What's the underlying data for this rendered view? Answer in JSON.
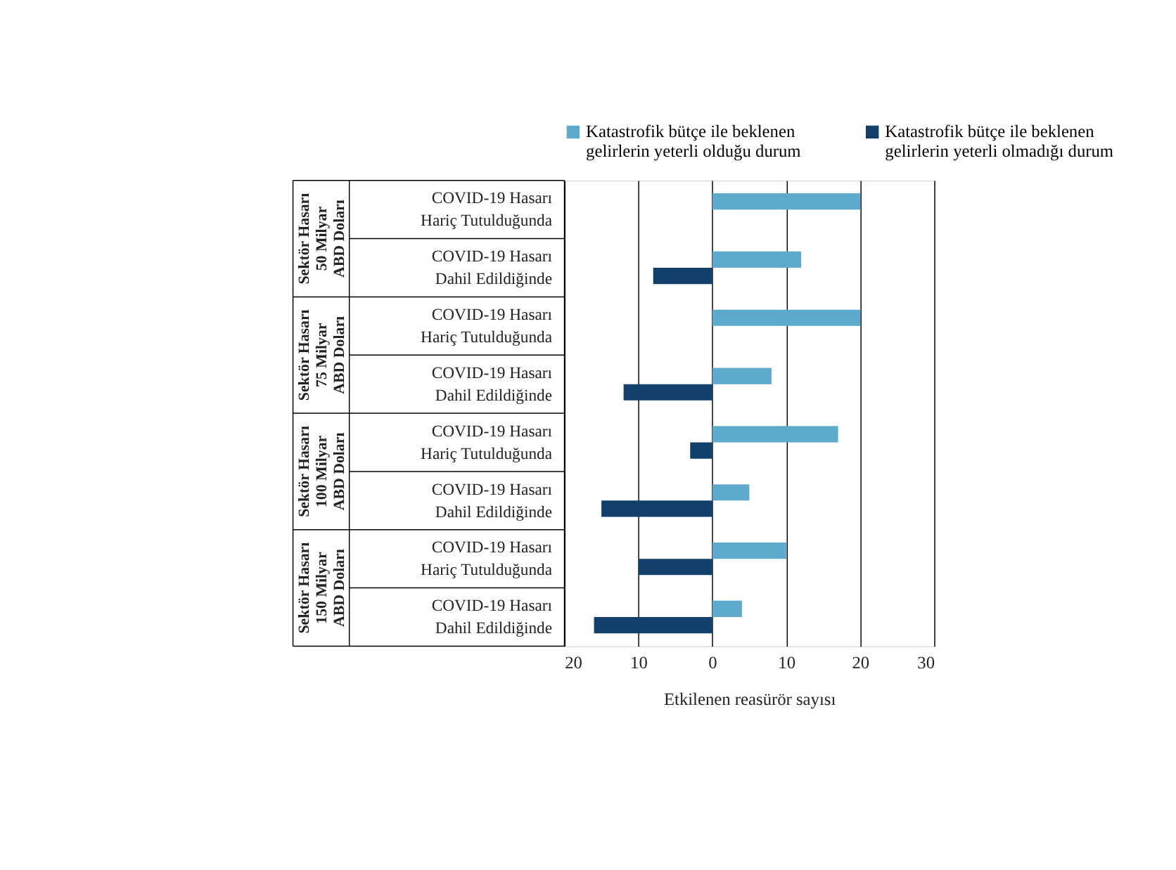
{
  "chart_data": {
    "type": "bar",
    "orientation": "horizontal",
    "categories": [
      "COVID-19 Hasarı Hariç Tutulduğunda",
      "COVID-19 Hasarı Dahil Edildiğinde",
      "COVID-19 Hasarı Hariç Tutulduğunda",
      "COVID-19 Hasarı Dahil Edildiğinde",
      "COVID-19 Hasarı Hariç Tutulduğunda",
      "COVID-19 Hasarı Dahil Edildiğinde",
      "COVID-19 Hasarı Hariç Tutulduğunda",
      "COVID-19 Hasarı Dahil Edildiğinde"
    ],
    "series": [
      {
        "name": "Katastrofik bütçe ile beklenen gelirlerin yeterli olduğu durum",
        "color": "#5eaacd",
        "values": [
          20,
          12,
          20,
          8,
          17,
          5,
          10,
          4
        ]
      },
      {
        "name": "Katastrofik bütçe ile beklenen gelirlerin yeterli olmadığı durum",
        "color": "#12406b",
        "values": [
          null,
          -8,
          null,
          -12,
          -3,
          -15,
          -10,
          -16
        ]
      }
    ],
    "annotations": [
      "Sektör Hasarı 50 Milyar ABD Doları",
      "Sektör Hasarı 75 Milyar ABD Doları",
      "Sektör Hasarı 100 Milyar ABD Doları",
      "Sektör Hasarı 150 Milyar ABD Doları"
    ],
    "xlabel": "Etkilenen reasürör sayısı",
    "xlim": [
      -20,
      30
    ],
    "xticks": [
      {
        "value": -20,
        "label": "20"
      },
      {
        "value": -10,
        "label": "10"
      },
      0,
      10,
      20,
      30
    ],
    "grid": "x",
    "legend": "top"
  }
}
